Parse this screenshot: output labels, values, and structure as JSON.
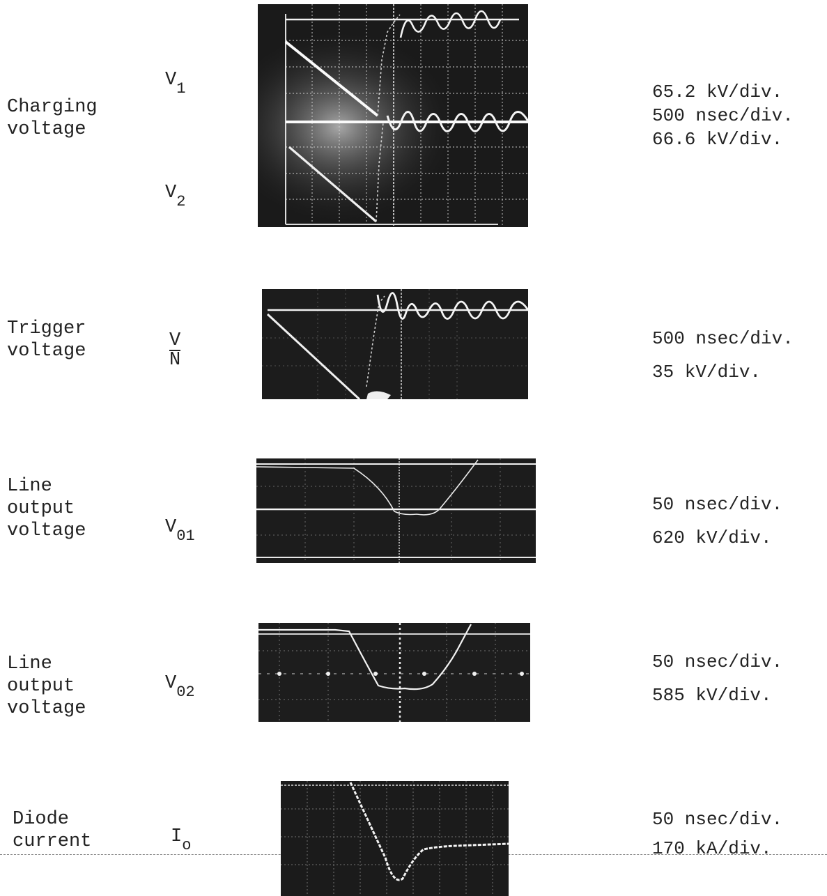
{
  "panels": [
    {
      "quantity": "Charging\nvoltage",
      "symbols": [
        {
          "base": "V",
          "sub": "1"
        },
        {
          "base": "V",
          "sub": "2"
        }
      ],
      "scales": [
        "65.2 kV/div.",
        "500 nsec/div.",
        "66.6 kV/div."
      ]
    },
    {
      "quantity": "Trigger\nvoltage",
      "symbol_top": "V",
      "symbol_bottom": "N",
      "scales": [
        "500 nsec/div.",
        "35 kV/div."
      ]
    },
    {
      "quantity": "Line\noutput\nvoltage",
      "symbol": {
        "base": "V",
        "sub": "01"
      },
      "scales": [
        "50 nsec/div.",
        "620 kV/div."
      ]
    },
    {
      "quantity": "Line\noutput\nvoltage",
      "symbol": {
        "base": "V",
        "sub": "02"
      },
      "scales": [
        "50 nsec/div.",
        "585 kV/div."
      ]
    },
    {
      "quantity": "Diode\ncurrent",
      "symbol": {
        "base": "I",
        "sub": "o"
      },
      "scales": [
        "50 nsec/div.",
        "170 kA/div."
      ]
    }
  ]
}
